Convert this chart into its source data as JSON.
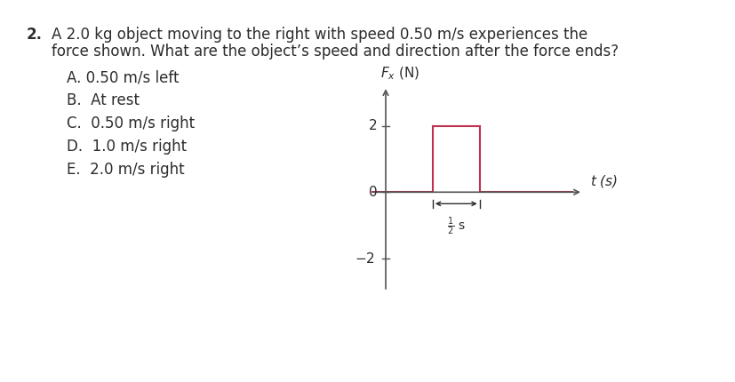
{
  "title_number": "2.",
  "title_line1": "A 2.0 kg object moving to the right with speed 0.50 m/s experiences the",
  "title_line2": "force shown. What are the object’s speed and direction after the force ends?",
  "options": [
    "A. 0.50 m/s left",
    "B.  At rest",
    "C.  0.50 m/s right",
    "D.  1.0 m/s right",
    "E.  2.0 m/s right"
  ],
  "graph_ylabel": "$F_x$ (N)",
  "graph_xlabel": "$t$ (s)",
  "ylim": [
    -3.0,
    3.0
  ],
  "xlim": [
    -0.3,
    4.0
  ],
  "ytick_vals": [
    2,
    0,
    -2
  ],
  "ytick_labels": [
    "2",
    "0",
    "$-2$"
  ],
  "pulse_x_start": 1.0,
  "pulse_x_end": 2.0,
  "pulse_y": 2.0,
  "line_color": "#c03050",
  "axis_color": "#555555",
  "background_color": "#ffffff",
  "text_color": "#2c2c2c",
  "annotation_label": "$\\frac{1}{2}$ s"
}
